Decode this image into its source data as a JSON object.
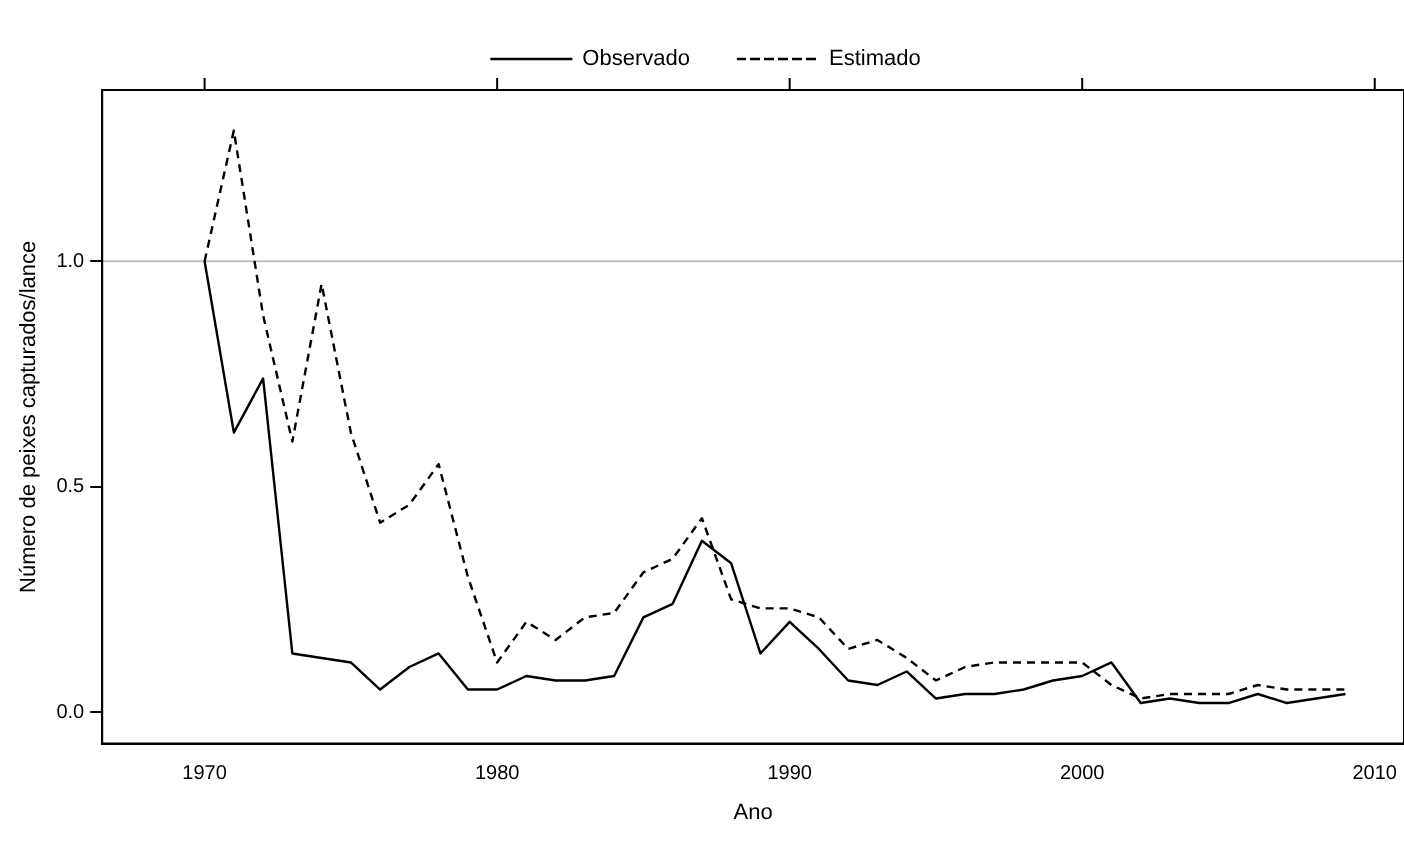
{
  "chart_data": {
    "type": "line",
    "xlabel": "Ano",
    "ylabel": "Número de peixes capturados/lance",
    "x": [
      1970,
      1971,
      1972,
      1973,
      1974,
      1975,
      1976,
      1977,
      1978,
      1979,
      1980,
      1981,
      1982,
      1983,
      1984,
      1985,
      1986,
      1987,
      1988,
      1989,
      1990,
      1991,
      1992,
      1993,
      1994,
      1995,
      1996,
      1997,
      1998,
      1999,
      2000,
      2001,
      2002,
      2003,
      2004,
      2005,
      2006,
      2007,
      2008,
      2009
    ],
    "series": [
      {
        "name": "Observado",
        "color": "#000000",
        "line_style": "solid",
        "values": [
          1.0,
          0.62,
          0.74,
          0.13,
          0.12,
          0.11,
          0.05,
          0.1,
          0.13,
          0.05,
          0.05,
          0.08,
          0.07,
          0.07,
          0.08,
          0.21,
          0.24,
          0.38,
          0.33,
          0.13,
          0.2,
          0.14,
          0.07,
          0.06,
          0.09,
          0.03,
          0.04,
          0.04,
          0.05,
          0.07,
          0.08,
          0.11,
          0.02,
          0.03,
          0.02,
          0.02,
          0.04,
          0.02,
          0.03,
          0.04
        ]
      },
      {
        "name": "Estimado",
        "color": "#000000",
        "line_style": "dashed",
        "values": [
          1.0,
          1.29,
          0.88,
          0.6,
          0.95,
          0.62,
          0.42,
          0.46,
          0.55,
          0.3,
          0.11,
          0.2,
          0.16,
          0.21,
          0.22,
          0.31,
          0.34,
          0.43,
          0.25,
          0.23,
          0.23,
          0.21,
          0.14,
          0.16,
          0.12,
          0.07,
          0.1,
          0.11,
          0.11,
          0.11,
          0.11,
          0.06,
          0.03,
          0.04,
          0.04,
          0.04,
          0.06,
          0.05,
          0.05,
          0.05
        ]
      }
    ],
    "xlim": [
      1966.5,
      2011
    ],
    "xticks": [
      1970,
      1980,
      1990,
      2000,
      2010
    ],
    "ylim": [
      -0.07,
      1.38
    ],
    "yticks": [
      {
        "value": 0,
        "label": "0.0"
      },
      {
        "value": 0.5,
        "label": "0.5"
      },
      {
        "value": 1,
        "label": "1.0"
      }
    ],
    "ref_lines": [
      {
        "axis": "y",
        "value": 1,
        "color": "#bebebe",
        "line_style": "solid"
      }
    ],
    "grid": false,
    "legend": "top",
    "marker": "none"
  }
}
